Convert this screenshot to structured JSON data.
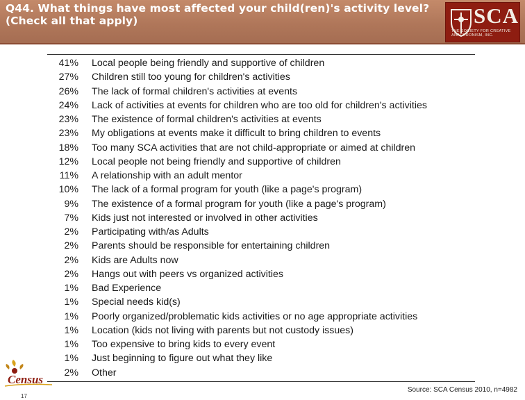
{
  "header": {
    "title_line1": "Q44. What things have most affected your child(ren)'s activity level?",
    "title_line2": "(Check all that apply)"
  },
  "logo": {
    "text": "SCA",
    "subtitle": "THE SOCIETY FOR CREATIVE ANACHRONISM, INC.",
    "background": "#8e1d11"
  },
  "rows": [
    {
      "pct": "41%",
      "label": "Local people being friendly and supportive of children"
    },
    {
      "pct": "27%",
      "label": "Children still too young for children's activities"
    },
    {
      "pct": "26%",
      "label": "The lack of formal children's activities at events"
    },
    {
      "pct": "24%",
      "label": "Lack of activities at events for children who are too old for children's activities"
    },
    {
      "pct": "23%",
      "label": "The existence of formal children's activities at events"
    },
    {
      "pct": "23%",
      "label": "My obligations at events make it difficult to bring children to events"
    },
    {
      "pct": "18%",
      "label": "Too many SCA activities that are not child-appropriate or aimed at children"
    },
    {
      "pct": "12%",
      "label": "Local people not being friendly and supportive of children"
    },
    {
      "pct": "11%",
      "label": "A relationship with an adult mentor"
    },
    {
      "pct": "10%",
      "label": "The lack of a formal program for youth (like a page's program)"
    },
    {
      "pct": "9%",
      "label": "The existence of a formal program for youth (like a page's program)"
    },
    {
      "pct": "7%",
      "label": "Kids just not interested or involved in other activities"
    },
    {
      "pct": "2%",
      "label": "Participating with/as Adults"
    },
    {
      "pct": "2%",
      "label": "Parents should be responsible for entertaining children"
    },
    {
      "pct": "2%",
      "label": "Kids are Adults now"
    },
    {
      "pct": "2%",
      "label": "Hangs out with peers vs organized activities"
    },
    {
      "pct": "1%",
      "label": "Bad Experience"
    },
    {
      "pct": "1%",
      "label": "Special needs kid(s)"
    },
    {
      "pct": "1%",
      "label": "Poorly organized/problematic kids activities or no age appropriate activities"
    },
    {
      "pct": "1%",
      "label": "Location (kids not living with parents but not custody issues)"
    },
    {
      "pct": "1%",
      "label": "Too expensive to bring kids to every event"
    },
    {
      "pct": "1%",
      "label": "Just beginning to figure out what they like"
    },
    {
      "pct": "2%",
      "label": "Other"
    }
  ],
  "footer": {
    "source": "Source: SCA Census 2010, n=4982",
    "page_number": "17",
    "census_logo_text": "Census"
  },
  "colors": {
    "header_bg": "#b0775a",
    "logo_red": "#8e1d11",
    "census_gold": "#d9a21b"
  }
}
